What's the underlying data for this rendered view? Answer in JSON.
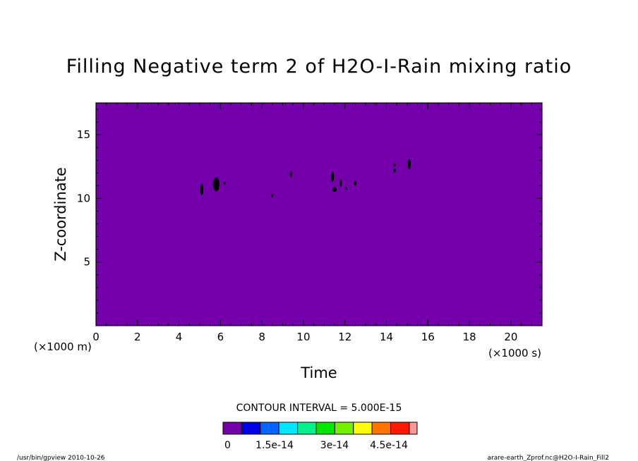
{
  "chart_data": {
    "type": "heatmap",
    "title": "Filling Negative term 2 of H2O-I-Rain mixing ratio",
    "xlabel": "Time",
    "ylabel": "Z-coordinate",
    "x_unit": "(×1000 s)",
    "y_unit": "(×1000 m)",
    "xlim": [
      0,
      21.5
    ],
    "ylim": [
      0,
      17.5
    ],
    "x_ticks": [
      0,
      2,
      4,
      6,
      8,
      10,
      12,
      14,
      16,
      18,
      20
    ],
    "y_ticks": [
      5,
      10,
      15
    ],
    "background_value": 0,
    "features": [
      {
        "x": 5.1,
        "y": 10.7,
        "w": 0.15,
        "h": 0.9
      },
      {
        "x": 5.8,
        "y": 11.1,
        "w": 0.3,
        "h": 1.1
      },
      {
        "x": 6.2,
        "y": 11.2,
        "w": 0.08,
        "h": 0.2
      },
      {
        "x": 8.5,
        "y": 10.2,
        "w": 0.08,
        "h": 0.3
      },
      {
        "x": 9.4,
        "y": 11.9,
        "w": 0.08,
        "h": 0.5
      },
      {
        "x": 11.4,
        "y": 11.7,
        "w": 0.15,
        "h": 0.8
      },
      {
        "x": 11.5,
        "y": 10.7,
        "w": 0.2,
        "h": 0.4
      },
      {
        "x": 11.8,
        "y": 11.2,
        "w": 0.1,
        "h": 0.6
      },
      {
        "x": 12.05,
        "y": 10.8,
        "w": 0.08,
        "h": 0.2
      },
      {
        "x": 12.5,
        "y": 11.2,
        "w": 0.08,
        "h": 0.4
      },
      {
        "x": 14.4,
        "y": 12.2,
        "w": 0.08,
        "h": 0.3
      },
      {
        "x": 14.4,
        "y": 12.6,
        "w": 0.06,
        "h": 0.2
      },
      {
        "x": 15.1,
        "y": 12.7,
        "w": 0.15,
        "h": 0.8
      }
    ],
    "contour_interval_text": "CONTOUR INTERVAL = 5.000E-15",
    "colorbar": {
      "colors": [
        "#7300ab",
        "#0000e6",
        "#0066ff",
        "#00e6ff",
        "#00f08c",
        "#00e600",
        "#73f000",
        "#ffff00",
        "#ff7300",
        "#ff1a00",
        "#ff9999"
      ],
      "labels": [
        "0",
        "1.5e-14",
        "3e-14",
        "4.5e-14"
      ]
    },
    "colors": {
      "fill": "#7300ab",
      "feature": "#000000"
    }
  },
  "footer": {
    "left": "/usr/bin/gpview  2010-10-26",
    "right": "arare-earth_Zprof.nc@H2O-I-Rain_Fill2"
  }
}
